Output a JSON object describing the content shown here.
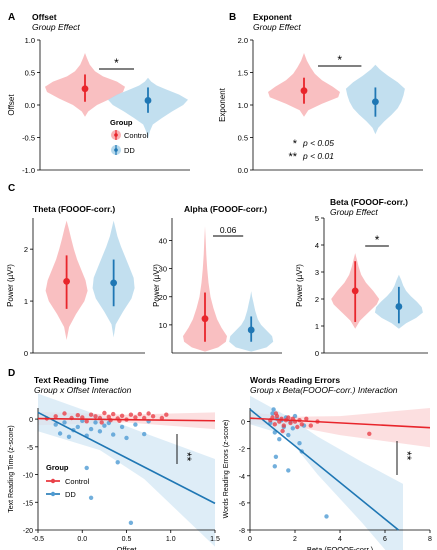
{
  "figure": {
    "legend_title": "Group",
    "legend_control": "Control",
    "legend_dd": "DD",
    "sig_note_1": "p < 0.05",
    "sig_note_2": "p < 0.01",
    "sig_note_1_sym": "*",
    "sig_note_2_sym": "**"
  },
  "colors": {
    "control_fill": "#f8b4b6",
    "dd_fill": "#b7d9ec",
    "control_point": "#e8252b",
    "dd_point": "#1f77b4",
    "control_scatter": "#e9414a",
    "dd_scatter": "#4f9bd3",
    "control_band": "#fbd4d6",
    "dd_band": "#d3e7f4"
  },
  "chart_data": [
    {
      "panel": "A",
      "type": "violin",
      "title": "Offset",
      "subtitle": "Group Effect",
      "xlabel": "",
      "ylabel": "Offset",
      "ylim": [
        -1.0,
        1.0
      ],
      "yticks": [
        "-1.0",
        "-0.5",
        "0.0",
        "0.5",
        "1.0"
      ],
      "groups": [
        "Control",
        "DD"
      ],
      "means": [
        0.25,
        0.07
      ],
      "ci": [
        [
          0.05,
          0.47
        ],
        [
          -0.12,
          0.27
        ]
      ],
      "significance": "*"
    },
    {
      "panel": "B",
      "type": "violin",
      "title": "Exponent",
      "subtitle": "Group Effect",
      "xlabel": "",
      "ylabel": "Exponent",
      "ylim": [
        0,
        2
      ],
      "yticks": [
        "0.0",
        "0.5",
        "1.0",
        "1.5",
        "2.0"
      ],
      "groups": [
        "Control",
        "DD"
      ],
      "means": [
        1.22,
        1.05
      ],
      "ci": [
        [
          1.02,
          1.42
        ],
        [
          0.82,
          1.27
        ]
      ],
      "significance": "*"
    },
    {
      "panel": "C",
      "type": "violin",
      "title": "Theta (FOOOF-corr.)",
      "subtitle": "",
      "xlabel": "",
      "ylabel": "Power (µV²)",
      "ylim": [
        0,
        2.6
      ],
      "yticks": [
        "0",
        "1",
        "2"
      ],
      "groups": [
        "Control",
        "DD"
      ],
      "means": [
        1.38,
        1.35
      ],
      "ci": [
        [
          0.85,
          1.88
        ],
        [
          0.9,
          1.8
        ]
      ],
      "significance": ""
    },
    {
      "panel": "",
      "type": "violin",
      "title": "Alpha (FOOOF-corr.)",
      "subtitle": "",
      "xlabel": "",
      "ylabel": "Power (µV²)",
      "ylim": [
        0,
        48
      ],
      "yticks": [
        "10",
        "20",
        "30",
        "40"
      ],
      "groups": [
        "Control",
        "DD"
      ],
      "means": [
        12.2,
        8.2
      ],
      "ci": [
        [
          4.0,
          21.5
        ],
        [
          4.0,
          13.0
        ]
      ],
      "significance": "0.06"
    },
    {
      "panel": "",
      "type": "violin",
      "title": "Beta (FOOOF-corr.)",
      "subtitle": "Group Effect",
      "xlabel": "",
      "ylabel": "Power (µV²)",
      "ylim": [
        0,
        5
      ],
      "yticks": [
        "0",
        "1",
        "2",
        "3",
        "4",
        "5"
      ],
      "groups": [
        "Control",
        "DD"
      ],
      "means": [
        2.3,
        1.72
      ],
      "ci": [
        [
          1.15,
          3.4
        ],
        [
          1.1,
          2.45
        ]
      ],
      "significance": "*"
    },
    {
      "panel": "D",
      "type": "scatter",
      "title": "Text Reading Time",
      "subtitle": "Group x Offset Interaction",
      "xlabel": "Offset",
      "ylabel": "Text Reading Time (z-score)",
      "xlim": [
        -0.5,
        1.5
      ],
      "ylim": [
        -20,
        2
      ],
      "xticks": [
        "-0.5",
        "0.0",
        "0.5",
        "1.0",
        "1.5"
      ],
      "yticks": [
        "0",
        "-5",
        "-10",
        "-15",
        "-20"
      ],
      "series": [
        {
          "name": "Control",
          "points": [
            [
              -0.3,
              0.5
            ],
            [
              -0.2,
              1.0
            ],
            [
              -0.12,
              0.2
            ],
            [
              -0.05,
              0.7
            ],
            [
              0.0,
              0.3
            ],
            [
              0.05,
              -0.4
            ],
            [
              0.1,
              0.8
            ],
            [
              0.15,
              0.5
            ],
            [
              0.2,
              0.2
            ],
            [
              0.25,
              1.1
            ],
            [
              0.3,
              0.4
            ],
            [
              0.32,
              -0.2
            ],
            [
              0.35,
              0.9
            ],
            [
              0.4,
              0.1
            ],
            [
              0.45,
              0.6
            ],
            [
              0.5,
              -0.1
            ],
            [
              0.55,
              0.8
            ],
            [
              0.6,
              0.3
            ],
            [
              0.65,
              0.9
            ],
            [
              0.7,
              0.2
            ],
            [
              0.75,
              1.0
            ],
            [
              0.8,
              0.5
            ],
            [
              0.9,
              0.2
            ],
            [
              0.95,
              0.8
            ],
            [
              -0.4,
              0.1
            ],
            [
              0.22,
              -0.6
            ],
            [
              0.42,
              -0.3
            ]
          ],
          "fit": [
            [
              -0.5,
              0.1
            ],
            [
              1.5,
              -0.3
            ]
          ]
        },
        {
          "name": "DD",
          "points": [
            [
              -0.3,
              -1.0
            ],
            [
              -0.25,
              -2.6
            ],
            [
              -0.2,
              -0.6
            ],
            [
              -0.15,
              -3.2
            ],
            [
              -0.1,
              -2.0
            ],
            [
              -0.05,
              -1.4
            ],
            [
              0.0,
              -0.3
            ],
            [
              0.05,
              -3.0
            ],
            [
              0.1,
              -1.8
            ],
            [
              0.15,
              -0.6
            ],
            [
              0.2,
              -2.2
            ],
            [
              0.25,
              -1.2
            ],
            [
              0.3,
              -0.7
            ],
            [
              0.35,
              -2.8
            ],
            [
              0.45,
              -1.4
            ],
            [
              0.5,
              -3.4
            ],
            [
              0.6,
              -1.0
            ],
            [
              0.7,
              -2.7
            ],
            [
              0.75,
              -0.4
            ],
            [
              0.4,
              -7.8
            ],
            [
              0.05,
              -8.8
            ],
            [
              0.1,
              -14.2
            ],
            [
              0.55,
              -18.7
            ]
          ],
          "fit": [
            [
              -0.5,
              1.2
            ],
            [
              1.5,
              -15.2
            ]
          ]
        }
      ],
      "significance": "**"
    },
    {
      "panel": "",
      "type": "scatter",
      "title": "Words Reading Errors",
      "subtitle": "Group x Beta(FOOOF-corr.) Interaction",
      "xlabel": "Beta (FOOOF-corr.)",
      "ylabel": "Words Reading Errors (z-score)",
      "xlim": [
        0,
        8
      ],
      "ylim": [
        -8,
        1
      ],
      "xticks": [
        "0",
        "2",
        "4",
        "6",
        "8"
      ],
      "yticks": [
        "0",
        "-2",
        "-4",
        "-6",
        "-8"
      ],
      "series": [
        {
          "name": "Control",
          "points": [
            [
              0.9,
              0.1
            ],
            [
              1.0,
              0.3
            ],
            [
              1.1,
              -0.2
            ],
            [
              1.2,
              0.4
            ],
            [
              1.3,
              0.0
            ],
            [
              1.4,
              0.2
            ],
            [
              1.5,
              -0.3
            ],
            [
              1.6,
              0.1
            ],
            [
              1.7,
              0.3
            ],
            [
              1.8,
              -0.1
            ],
            [
              1.9,
              0.2
            ],
            [
              2.0,
              0.0
            ],
            [
              2.1,
              -0.4
            ],
            [
              2.2,
              0.1
            ],
            [
              2.3,
              -0.2
            ],
            [
              2.5,
              0.2
            ],
            [
              2.7,
              -0.3
            ],
            [
              3.0,
              0.0
            ],
            [
              1.45,
              -0.7
            ],
            [
              1.15,
              0.6
            ],
            [
              5.3,
              -0.9
            ]
          ],
          "fit": [
            [
              0,
              0.25
            ],
            [
              8,
              -0.45
            ]
          ]
        },
        {
          "name": "DD",
          "points": [
            [
              0.9,
              -0.1
            ],
            [
              1.0,
              0.6
            ],
            [
              1.1,
              -0.8
            ],
            [
              1.2,
              0.2
            ],
            [
              1.3,
              -1.3
            ],
            [
              1.4,
              0.1
            ],
            [
              1.5,
              -0.4
            ],
            [
              1.6,
              0.3
            ],
            [
              1.7,
              -1.0
            ],
            [
              1.8,
              0.0
            ],
            [
              1.9,
              -0.5
            ],
            [
              2.0,
              0.4
            ],
            [
              2.2,
              -1.6
            ],
            [
              2.4,
              -0.3
            ],
            [
              1.15,
              -2.6
            ],
            [
              1.1,
              -3.3
            ],
            [
              1.7,
              -3.6
            ],
            [
              2.3,
              -2.2
            ],
            [
              3.4,
              -7.0
            ],
            [
              1.05,
              0.9
            ]
          ],
          "fit": [
            [
              0,
              0.9
            ],
            [
              6.6,
              -8.0
            ]
          ]
        }
      ],
      "significance": "**"
    }
  ]
}
